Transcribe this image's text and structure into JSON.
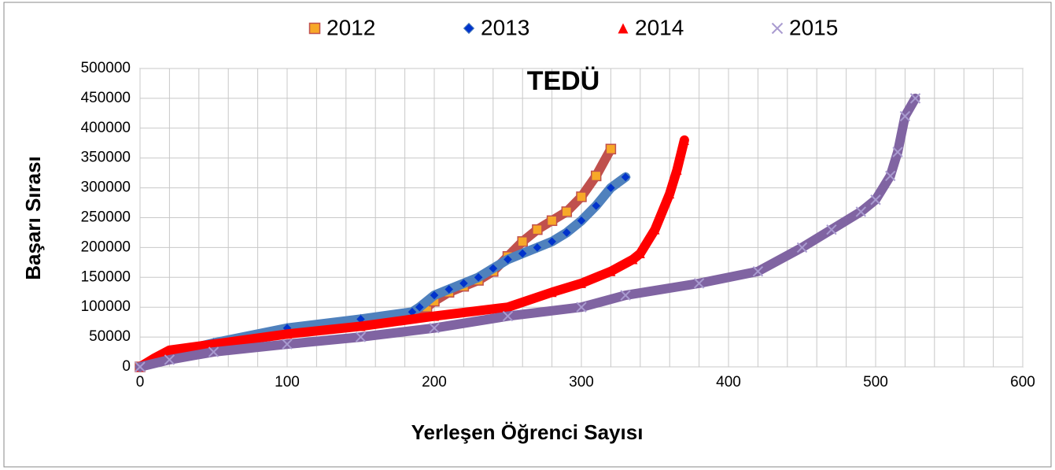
{
  "chart_data": {
    "type": "scatter",
    "title": "TEDÜ",
    "xlabel": "Yerleşen Öğrenci Sayısı",
    "ylabel": "Başarı Sırası",
    "xlim": [
      0,
      600
    ],
    "xticks": [
      0,
      100,
      200,
      300,
      400,
      500,
      600
    ],
    "x_minor_gridlines": [
      20,
      40,
      60,
      80,
      120,
      140,
      160,
      180,
      220,
      240,
      260,
      280,
      320,
      340,
      360,
      380,
      420,
      440,
      460,
      480,
      520,
      540,
      560,
      580
    ],
    "ylim": [
      0,
      500000
    ],
    "yticks": [
      0,
      50000,
      100000,
      150000,
      200000,
      250000,
      300000,
      350000,
      400000,
      450000,
      500000
    ],
    "grid": true,
    "legend": "top",
    "series": [
      {
        "name": "2012",
        "color": "#c0504d",
        "marker": "square",
        "marker_color": "#f7a828",
        "x": [
          0,
          20,
          50,
          100,
          150,
          185,
          195,
          200,
          210,
          220,
          230,
          240,
          250,
          260,
          270,
          280,
          290,
          300,
          310,
          320
        ],
        "values": [
          0,
          20000,
          35000,
          60000,
          75000,
          88000,
          100000,
          110000,
          125000,
          135000,
          145000,
          160000,
          185000,
          210000,
          230000,
          245000,
          260000,
          285000,
          320000,
          365000
        ]
      },
      {
        "name": "2013",
        "color": "#4f81bd",
        "marker": "diamond",
        "marker_color": "#0033cc",
        "x": [
          0,
          20,
          50,
          100,
          150,
          185,
          190,
          200,
          210,
          220,
          230,
          240,
          250,
          260,
          270,
          280,
          290,
          300,
          310,
          320,
          330
        ],
        "values": [
          0,
          22000,
          40000,
          65000,
          80000,
          92000,
          100000,
          120000,
          130000,
          140000,
          150000,
          165000,
          180000,
          190000,
          200000,
          210000,
          225000,
          245000,
          270000,
          300000,
          318000
        ]
      },
      {
        "name": "2014",
        "color": "#ff0000",
        "marker": "triangle",
        "marker_color": "#ff0000",
        "x": [
          0,
          10,
          20,
          50,
          100,
          150,
          200,
          250,
          280,
          300,
          320,
          335,
          340,
          350,
          360,
          365,
          370
        ],
        "values": [
          0,
          15000,
          28000,
          38000,
          55000,
          68000,
          85000,
          100000,
          125000,
          140000,
          160000,
          180000,
          190000,
          230000,
          290000,
          330000,
          380000
        ]
      },
      {
        "name": "2015",
        "color": "#8064a2",
        "marker": "x",
        "marker_color": "#a99bd0",
        "x": [
          0,
          20,
          50,
          100,
          150,
          200,
          250,
          300,
          330,
          380,
          420,
          450,
          470,
          490,
          500,
          510,
          515,
          520,
          527
        ],
        "values": [
          0,
          12000,
          25000,
          38000,
          50000,
          65000,
          85000,
          100000,
          120000,
          140000,
          160000,
          200000,
          230000,
          260000,
          280000,
          320000,
          360000,
          420000,
          450000
        ]
      }
    ]
  }
}
